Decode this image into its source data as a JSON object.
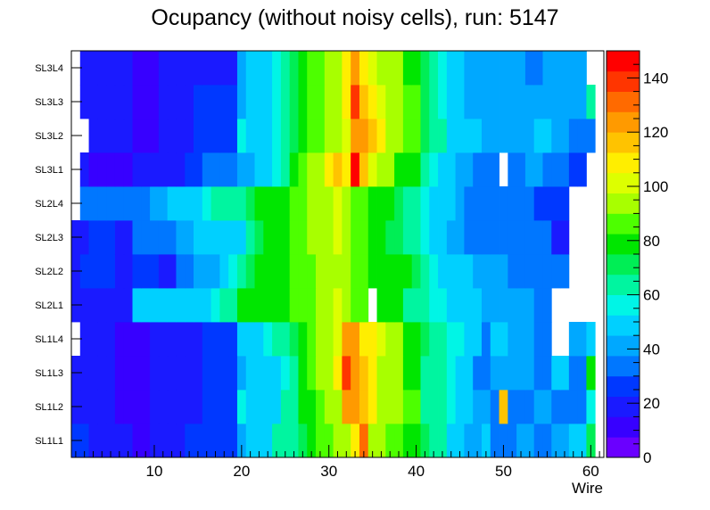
{
  "chart_data": {
    "type": "heatmap",
    "title": "Ocupancy (without noisy cells), run: 5147",
    "xlabel": "Wire",
    "ylabel": "",
    "xlim": [
      0.5,
      61.5
    ],
    "x_ticks": [
      10,
      20,
      30,
      40,
      50,
      60
    ],
    "y_categories": [
      "SL1L1",
      "SL1L2",
      "SL1L3",
      "SL1L4",
      "SL2L1",
      "SL2L2",
      "SL2L3",
      "SL2L4",
      "SL3L1",
      "SL3L2",
      "SL3L3",
      "SL3L4"
    ],
    "colorbar": {
      "min": 0,
      "max": 150,
      "ticks": [
        0,
        20,
        40,
        60,
        80,
        100,
        120,
        140
      ]
    },
    "rows": [
      {
        "label": "SL1L1",
        "values": [
          25,
          25,
          15,
          15,
          15,
          15,
          15,
          10,
          10,
          20,
          20,
          20,
          20,
          25,
          25,
          25,
          25,
          25,
          25,
          40,
          45,
          50,
          50,
          60,
          60,
          65,
          70,
          80,
          85,
          85,
          90,
          95,
          110,
          130,
          90,
          90,
          85,
          85,
          80,
          80,
          70,
          60,
          60,
          50,
          50,
          40,
          40,
          45,
          35,
          35,
          35,
          40,
          40,
          35,
          35,
          40,
          40,
          45,
          45,
          70,
          null
        ]
      },
      {
        "label": "SL1L2",
        "values": [
          20,
          20,
          15,
          15,
          15,
          12,
          12,
          10,
          10,
          15,
          15,
          15,
          15,
          20,
          20,
          25,
          25,
          25,
          25,
          55,
          45,
          45,
          50,
          50,
          60,
          65,
          75,
          80,
          85,
          90,
          95,
          125,
          125,
          115,
          110,
          95,
          90,
          90,
          85,
          85,
          65,
          60,
          60,
          55,
          45,
          45,
          40,
          40,
          35,
          115,
          35,
          35,
          35,
          40,
          40,
          30,
          30,
          35,
          35,
          55,
          null
        ]
      },
      {
        "label": "SL1L3",
        "values": [
          20,
          20,
          15,
          15,
          15,
          12,
          12,
          10,
          10,
          15,
          15,
          15,
          15,
          20,
          20,
          25,
          25,
          25,
          25,
          40,
          45,
          45,
          45,
          50,
          55,
          65,
          75,
          85,
          90,
          90,
          105,
          140,
          125,
          115,
          110,
          95,
          90,
          90,
          80,
          80,
          65,
          65,
          60,
          55,
          45,
          45,
          35,
          35,
          40,
          40,
          40,
          40,
          40,
          30,
          30,
          50,
          50,
          35,
          35,
          80,
          null
        ]
      },
      {
        "label": "SL1L4",
        "values": [
          null,
          20,
          15,
          15,
          15,
          12,
          12,
          10,
          10,
          15,
          15,
          15,
          20,
          20,
          20,
          25,
          25,
          25,
          25,
          45,
          50,
          50,
          55,
          60,
          60,
          70,
          75,
          85,
          90,
          95,
          100,
          125,
          125,
          105,
          110,
          100,
          95,
          95,
          80,
          80,
          70,
          65,
          65,
          55,
          55,
          45,
          45,
          35,
          45,
          45,
          40,
          40,
          40,
          35,
          35,
          null,
          null,
          40,
          40,
          50,
          null
        ]
      },
      {
        "label": "SL2L1",
        "values": [
          22,
          22,
          22,
          22,
          22,
          22,
          22,
          50,
          50,
          50,
          50,
          50,
          50,
          50,
          50,
          50,
          55,
          60,
          65,
          75,
          75,
          75,
          75,
          80,
          80,
          85,
          85,
          85,
          90,
          90,
          100,
          90,
          85,
          85,
          null,
          80,
          80,
          80,
          65,
          65,
          60,
          55,
          55,
          50,
          50,
          45,
          45,
          40,
          40,
          40,
          40,
          40,
          40,
          35,
          35,
          null,
          null,
          null,
          null,
          null,
          null
        ]
      },
      {
        "label": "SL2L2",
        "values": [
          20,
          25,
          25,
          25,
          25,
          15,
          15,
          25,
          25,
          25,
          20,
          20,
          35,
          35,
          40,
          40,
          40,
          50,
          55,
          60,
          70,
          75,
          80,
          80,
          80,
          85,
          85,
          85,
          90,
          90,
          95,
          90,
          85,
          85,
          80,
          75,
          75,
          75,
          75,
          70,
          60,
          55,
          45,
          45,
          45,
          45,
          40,
          40,
          40,
          40,
          35,
          35,
          30,
          30,
          30,
          35,
          35,
          null,
          null,
          null,
          null
        ]
      },
      {
        "label": "SL2L3",
        "values": [
          20,
          20,
          25,
          25,
          25,
          15,
          15,
          30,
          30,
          30,
          30,
          30,
          40,
          40,
          45,
          45,
          50,
          50,
          50,
          50,
          60,
          70,
          75,
          75,
          80,
          85,
          85,
          90,
          90,
          95,
          100,
          90,
          85,
          85,
          80,
          75,
          70,
          70,
          60,
          60,
          55,
          45,
          45,
          40,
          40,
          35,
          35,
          30,
          30,
          35,
          35,
          30,
          30,
          35,
          35,
          20,
          20,
          null,
          null,
          null,
          null
        ]
      },
      {
        "label": "SL2L4",
        "values": [
          null,
          30,
          30,
          35,
          35,
          30,
          30,
          35,
          35,
          40,
          40,
          45,
          45,
          50,
          50,
          55,
          60,
          60,
          65,
          65,
          70,
          75,
          75,
          80,
          80,
          85,
          85,
          90,
          90,
          95,
          100,
          90,
          85,
          85,
          80,
          80,
          75,
          70,
          65,
          65,
          55,
          50,
          50,
          45,
          40,
          35,
          35,
          35,
          35,
          35,
          30,
          30,
          30,
          25,
          25,
          25,
          25,
          null,
          null,
          null,
          null
        ]
      },
      {
        "label": "SL3L1",
        "values": [
          null,
          15,
          12,
          12,
          10,
          10,
          12,
          15,
          15,
          20,
          20,
          20,
          20,
          25,
          25,
          30,
          30,
          30,
          30,
          40,
          40,
          45,
          50,
          55,
          65,
          80,
          85,
          90,
          95,
          105,
          115,
          110,
          145,
          115,
          100,
          90,
          90,
          80,
          80,
          75,
          60,
          55,
          50,
          45,
          40,
          40,
          35,
          35,
          35,
          null,
          35,
          35,
          40,
          40,
          35,
          30,
          30,
          25,
          25,
          null,
          null
        ]
      },
      {
        "label": "SL3L2",
        "values": [
          null,
          null,
          15,
          15,
          15,
          15,
          15,
          12,
          12,
          12,
          20,
          20,
          20,
          20,
          25,
          25,
          25,
          25,
          25,
          55,
          50,
          50,
          50,
          55,
          60,
          70,
          80,
          85,
          85,
          90,
          90,
          100,
          125,
          120,
          115,
          105,
          95,
          95,
          85,
          85,
          70,
          60,
          60,
          50,
          50,
          45,
          45,
          40,
          40,
          40,
          40,
          40,
          40,
          45,
          45,
          40,
          40,
          30,
          30,
          35,
          null
        ]
      },
      {
        "label": "SL3L3",
        "values": [
          null,
          20,
          15,
          15,
          15,
          15,
          15,
          10,
          10,
          10,
          20,
          20,
          20,
          20,
          25,
          25,
          25,
          25,
          25,
          40,
          45,
          50,
          50,
          55,
          60,
          70,
          80,
          85,
          85,
          90,
          95,
          110,
          140,
          115,
          110,
          100,
          95,
          95,
          85,
          85,
          70,
          60,
          55,
          50,
          45,
          40,
          40,
          40,
          40,
          40,
          40,
          40,
          40,
          40,
          40,
          40,
          40,
          40,
          40,
          60,
          null
        ]
      },
      {
        "label": "SL3L4",
        "values": [
          null,
          20,
          15,
          15,
          15,
          15,
          15,
          12,
          12,
          12,
          15,
          15,
          15,
          15,
          20,
          20,
          20,
          20,
          20,
          40,
          45,
          45,
          50,
          55,
          60,
          70,
          80,
          85,
          85,
          90,
          95,
          110,
          120,
          110,
          100,
          95,
          90,
          90,
          80,
          80,
          70,
          60,
          55,
          50,
          45,
          40,
          40,
          40,
          40,
          40,
          40,
          40,
          35,
          35,
          40,
          40,
          40,
          40,
          40,
          null,
          null
        ]
      }
    ]
  }
}
